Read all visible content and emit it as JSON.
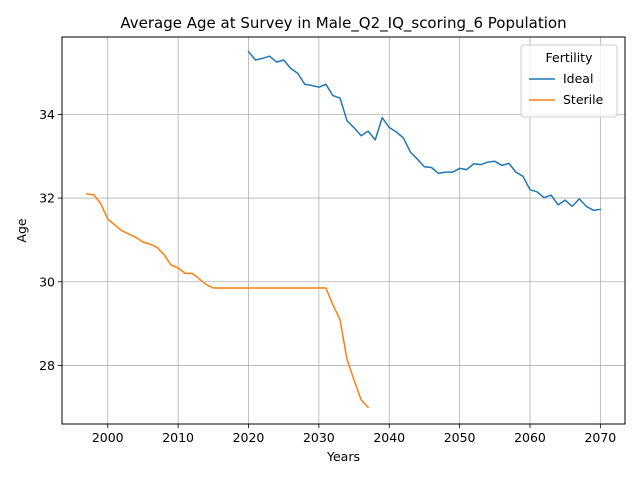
{
  "chart_data": {
    "type": "line",
    "title": "Average Age at Survey in Male_Q2_IQ_scoring_6 Population",
    "xlabel": "Years",
    "ylabel": "Age",
    "xlim": [
      1993.5,
      2073.5
    ],
    "ylim": [
      26.6,
      35.85
    ],
    "xticks": [
      2000,
      2010,
      2020,
      2030,
      2040,
      2050,
      2060,
      2070
    ],
    "yticks": [
      28,
      30,
      32,
      34
    ],
    "grid": true,
    "legend": {
      "title": "Fertility",
      "placement": "top-right"
    },
    "series": [
      {
        "name": "Ideal",
        "color": "#1f77b4",
        "x": [
          2020,
          2021,
          2022,
          2023,
          2024,
          2025,
          2026,
          2027,
          2028,
          2029,
          2030,
          2031,
          2032,
          2033,
          2034,
          2035,
          2036,
          2037,
          2038,
          2039,
          2040,
          2041,
          2042,
          2043,
          2044,
          2045,
          2046,
          2047,
          2048,
          2049,
          2050,
          2051,
          2052,
          2053,
          2054,
          2055,
          2056,
          2057,
          2058,
          2059,
          2060,
          2061,
          2062,
          2063,
          2064,
          2065,
          2066,
          2067,
          2068,
          2069,
          2070
        ],
        "y": [
          35.5,
          35.3,
          35.34,
          35.39,
          35.25,
          35.3,
          35.1,
          34.98,
          34.72,
          34.69,
          34.65,
          34.72,
          34.45,
          34.39,
          33.85,
          33.68,
          33.49,
          33.6,
          33.39,
          33.92,
          33.69,
          33.58,
          33.44,
          33.1,
          32.93,
          32.75,
          32.73,
          32.59,
          32.62,
          32.62,
          32.71,
          32.68,
          32.82,
          32.8,
          32.86,
          32.88,
          32.78,
          32.83,
          32.62,
          32.52,
          32.2,
          32.15,
          32.01,
          32.07,
          31.84,
          31.95,
          31.8,
          31.98,
          31.8,
          31.71,
          31.73
        ]
      },
      {
        "name": "Sterile",
        "color": "#ff7f0e",
        "x": [
          1997,
          1998,
          1999,
          2000,
          2001,
          2002,
          2003,
          2004,
          2005,
          2006,
          2007,
          2008,
          2009,
          2010,
          2011,
          2012,
          2013,
          2014,
          2015,
          2016,
          2017,
          2018,
          2019,
          2020,
          2021,
          2022,
          2023,
          2024,
          2025,
          2026,
          2027,
          2028,
          2029,
          2030,
          2031,
          2032,
          2033,
          2034,
          2035,
          2036,
          2037
        ],
        "y": [
          32.1,
          32.08,
          31.87,
          31.5,
          31.36,
          31.22,
          31.14,
          31.06,
          30.95,
          30.9,
          30.82,
          30.65,
          30.4,
          30.33,
          30.2,
          30.2,
          30.07,
          29.93,
          29.85,
          29.85,
          29.85,
          29.85,
          29.85,
          29.85,
          29.85,
          29.85,
          29.85,
          29.85,
          29.85,
          29.85,
          29.85,
          29.85,
          29.85,
          29.85,
          29.85,
          29.45,
          29.1,
          28.15,
          27.65,
          27.18,
          27.0
        ]
      }
    ]
  }
}
